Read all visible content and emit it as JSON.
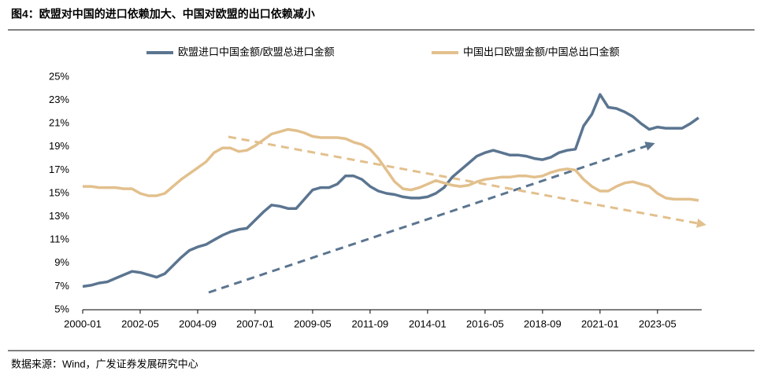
{
  "chart_data": {
    "type": "line",
    "title": "图4：欧盟对中国的进口依赖加大、中国对欧盟的出口依赖减小",
    "source": "数据来源：Wind，广发证券发展研究中心",
    "x": [
      "2000-01",
      "2000-05",
      "2000-09",
      "2001-01",
      "2001-05",
      "2001-09",
      "2002-01",
      "2002-05",
      "2002-09",
      "2003-01",
      "2003-05",
      "2003-09",
      "2004-01",
      "2004-05",
      "2004-09",
      "2005-01",
      "2005-05",
      "2005-09",
      "2006-01",
      "2006-05",
      "2006-09",
      "2007-01",
      "2007-05",
      "2007-09",
      "2008-01",
      "2008-05",
      "2008-09",
      "2009-01",
      "2009-05",
      "2009-09",
      "2010-01",
      "2010-05",
      "2010-09",
      "2011-01",
      "2011-05",
      "2011-09",
      "2012-01",
      "2012-05",
      "2012-09",
      "2013-01",
      "2013-05",
      "2013-09",
      "2014-01",
      "2014-05",
      "2014-09",
      "2015-01",
      "2015-05",
      "2015-09",
      "2016-01",
      "2016-05",
      "2016-09",
      "2017-01",
      "2017-05",
      "2017-09",
      "2018-01",
      "2018-05",
      "2018-09",
      "2019-01",
      "2019-05",
      "2019-09",
      "2020-01",
      "2020-05",
      "2020-09",
      "2021-01",
      "2021-05",
      "2021-09",
      "2022-01",
      "2022-05",
      "2022-09",
      "2023-01",
      "2023-05",
      "2023-09",
      "2024-01",
      "2024-05",
      "2024-09",
      "2025-01"
    ],
    "series": [
      {
        "name": "欧盟进口中国金额/欧盟总进口金额",
        "color": "#5b7590",
        "values": [
          7.0,
          7.1,
          7.3,
          7.4,
          7.7,
          8.0,
          8.3,
          8.2,
          8.0,
          7.8,
          8.1,
          8.8,
          9.5,
          10.1,
          10.4,
          10.6,
          11.0,
          11.4,
          11.7,
          11.9,
          12.0,
          12.7,
          13.4,
          14.0,
          13.9,
          13.7,
          13.7,
          14.5,
          15.3,
          15.5,
          15.5,
          15.8,
          16.5,
          16.5,
          16.2,
          15.6,
          15.2,
          15.0,
          14.9,
          14.7,
          14.6,
          14.6,
          14.7,
          15.0,
          15.5,
          16.4,
          17.0,
          17.6,
          18.2,
          18.5,
          18.7,
          18.5,
          18.3,
          18.3,
          18.2,
          18.0,
          17.9,
          18.1,
          18.5,
          18.7,
          18.8,
          20.8,
          21.8,
          23.5,
          22.4,
          22.3,
          22.0,
          21.6,
          21.0,
          20.5,
          20.7,
          20.6,
          20.6,
          20.6,
          21.0,
          21.5
        ]
      },
      {
        "name": "中国出口欧盟金额/中国总出口金额",
        "color": "#e2c08d",
        "values": [
          15.6,
          15.6,
          15.5,
          15.5,
          15.5,
          15.4,
          15.4,
          15.0,
          14.8,
          14.8,
          15.0,
          15.6,
          16.2,
          16.7,
          17.2,
          17.7,
          18.5,
          18.9,
          18.9,
          18.6,
          18.7,
          19.1,
          19.6,
          20.1,
          20.3,
          20.5,
          20.4,
          20.2,
          19.9,
          19.8,
          19.8,
          19.8,
          19.7,
          19.4,
          19.2,
          18.8,
          18.0,
          17.0,
          16.0,
          15.4,
          15.3,
          15.5,
          15.8,
          16.1,
          15.9,
          15.7,
          15.6,
          15.7,
          16.0,
          16.2,
          16.3,
          16.4,
          16.4,
          16.5,
          16.5,
          16.4,
          16.5,
          16.8,
          17.0,
          17.1,
          17.0,
          16.2,
          15.6,
          15.2,
          15.2,
          15.6,
          15.9,
          16.0,
          15.8,
          15.6,
          15.0,
          14.6,
          14.5,
          14.5,
          14.5,
          14.4
        ]
      }
    ],
    "xlim": [
      "2000-01",
      "2025-01"
    ],
    "xticks": [
      "2000-01",
      "2002-05",
      "2004-09",
      "2007-01",
      "2009-05",
      "2011-09",
      "2014-01",
      "2016-05",
      "2018-09",
      "2021-01",
      "2023-05"
    ],
    "ylim": [
      5,
      25
    ],
    "yticks": [
      {
        "value": 5,
        "label": "5%"
      },
      {
        "value": 7,
        "label": "7%"
      },
      {
        "value": 9,
        "label": "9%"
      },
      {
        "value": 11,
        "label": "11%"
      },
      {
        "value": 13,
        "label": "13%"
      },
      {
        "value": 15,
        "label": "15%"
      },
      {
        "value": 17,
        "label": "17%"
      },
      {
        "value": 19,
        "label": "19%"
      },
      {
        "value": 21,
        "label": "21%"
      },
      {
        "value": 23,
        "label": "23%"
      },
      {
        "value": 25,
        "label": "25%"
      }
    ],
    "grid": false,
    "legend": "top"
  }
}
